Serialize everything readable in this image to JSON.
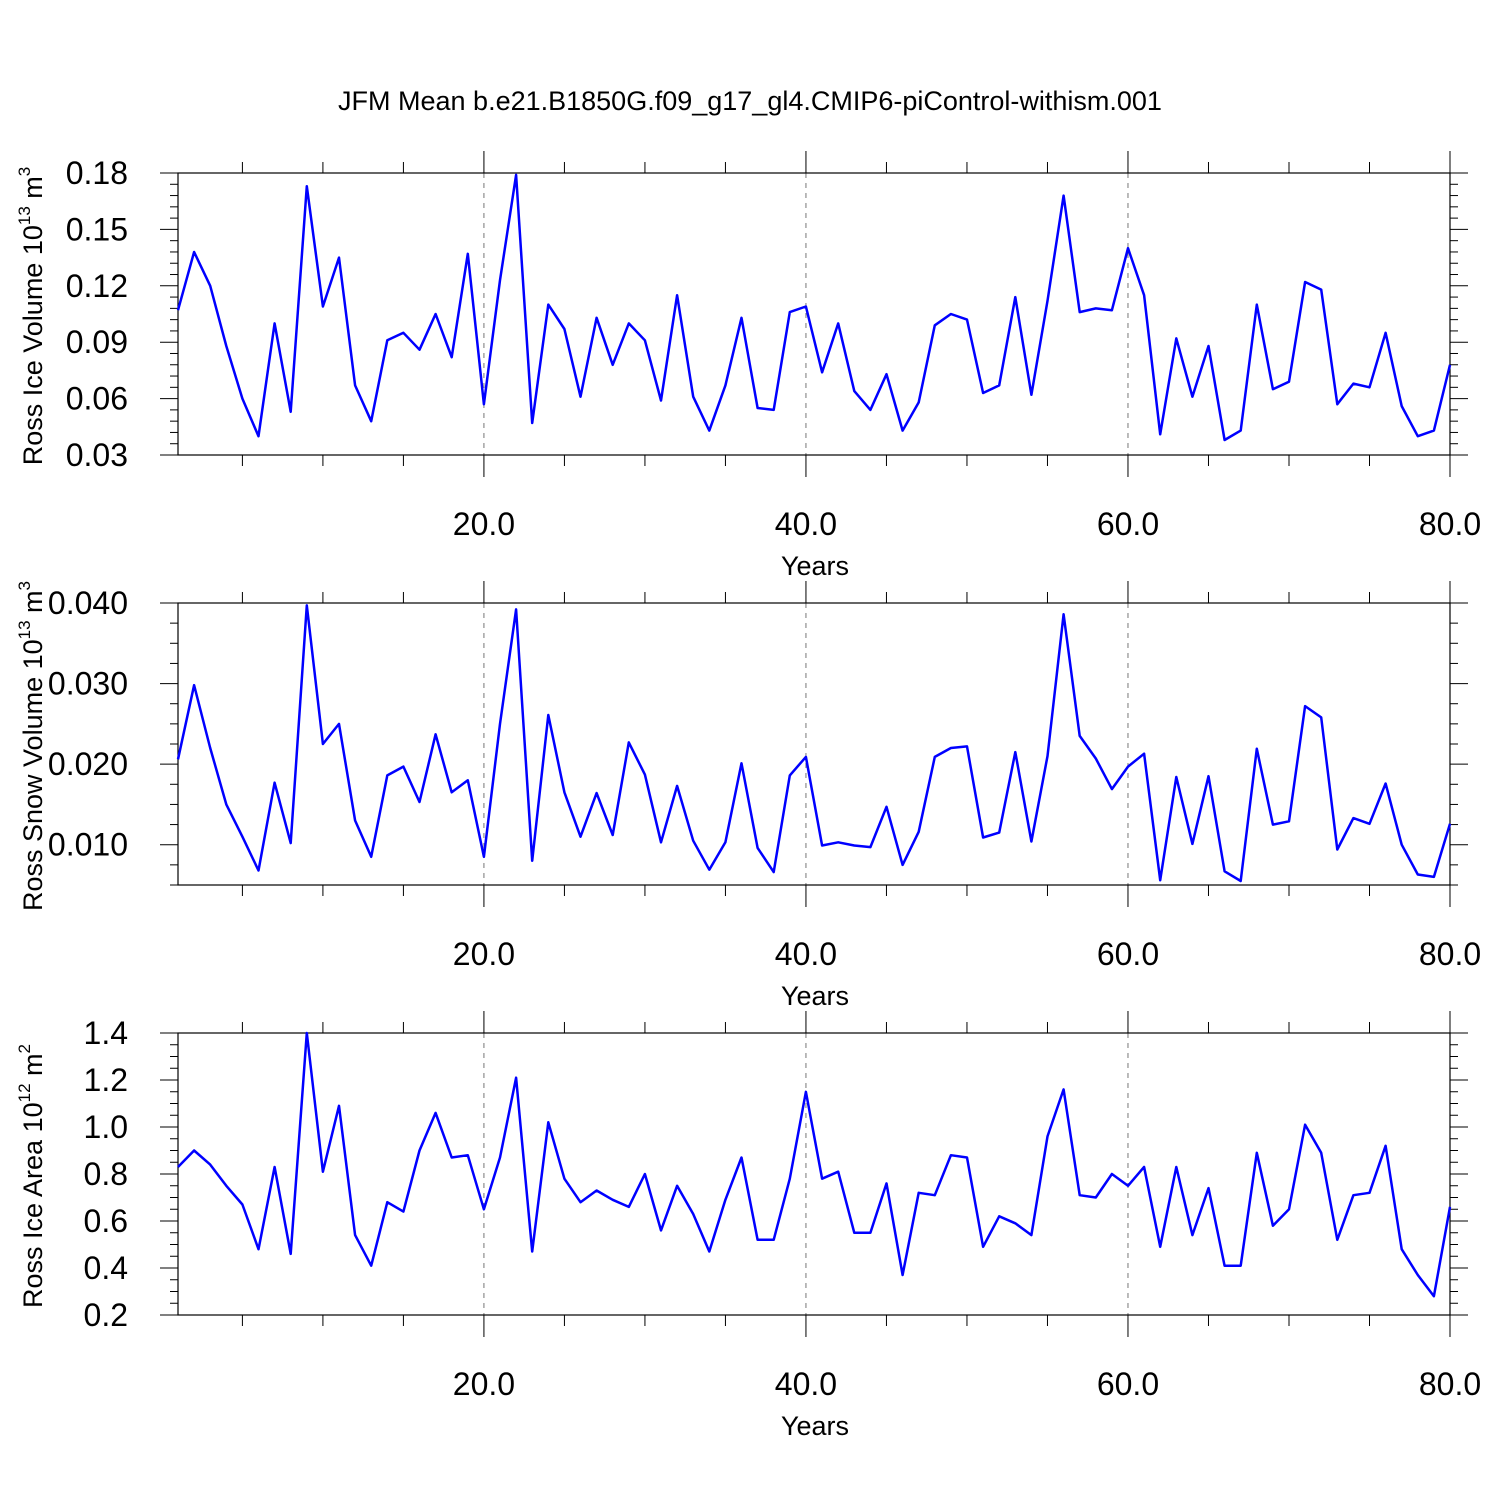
{
  "title": "JFM Mean b.e21.B1850G.f09_g17_gl4.CMIP6-piControl-withism.001",
  "chart_data": [
    {
      "type": "line",
      "ylabel": "Ross Ice Volume 10",
      "ylabel_sup": "13",
      "ylabel_unit": "m",
      "ylabel_unit_sup": "3",
      "xlabel": "Years",
      "xlim": [
        1,
        80
      ],
      "ylim": [
        0.03,
        0.18
      ],
      "xticks": [
        20,
        40,
        60,
        80
      ],
      "xtick_labels": [
        "20.0",
        "40.0",
        "60.0",
        "80.0"
      ],
      "yticks": [
        0.03,
        0.06,
        0.09,
        0.12,
        0.15,
        0.18
      ],
      "ytick_labels": [
        "0.03",
        "0.06",
        "0.09",
        "0.12",
        "0.15",
        "0.18"
      ],
      "x_start": 1,
      "color": "#0000ff",
      "grid": "dashed vertical at 20, 40, 60",
      "values": [
        0.107,
        0.138,
        0.12,
        0.088,
        0.06,
        0.04,
        0.1,
        0.053,
        0.173,
        0.109,
        0.135,
        0.067,
        0.048,
        0.091,
        0.095,
        0.086,
        0.105,
        0.082,
        0.137,
        0.057,
        0.123,
        0.179,
        0.047,
        0.11,
        0.097,
        0.061,
        0.103,
        0.078,
        0.1,
        0.091,
        0.059,
        0.115,
        0.061,
        0.043,
        0.067,
        0.103,
        0.055,
        0.054,
        0.106,
        0.109,
        0.074,
        0.1,
        0.064,
        0.054,
        0.073,
        0.043,
        0.058,
        0.099,
        0.105,
        0.102,
        0.063,
        0.067,
        0.114,
        0.062,
        0.112,
        0.168,
        0.106,
        0.108,
        0.107,
        0.14,
        0.115,
        0.041,
        0.092,
        0.061,
        0.088,
        0.038,
        0.043,
        0.11,
        0.065,
        0.069,
        0.122,
        0.118,
        0.057,
        0.068,
        0.066,
        0.095,
        0.056,
        0.04,
        0.043,
        0.078
      ]
    },
    {
      "type": "line",
      "ylabel": "Ross Snow Volume 10",
      "ylabel_sup": "13",
      "ylabel_unit": "m",
      "ylabel_unit_sup": "3",
      "xlabel": "Years",
      "xlim": [
        1,
        80
      ],
      "ylim": [
        0.005,
        0.04
      ],
      "xticks": [
        20,
        40,
        60,
        80
      ],
      "xtick_labels": [
        "20.0",
        "40.0",
        "60.0",
        "80.0"
      ],
      "yticks": [
        0.01,
        0.02,
        0.03,
        0.04
      ],
      "ytick_labels": [
        "0.010",
        "0.020",
        "0.030",
        "0.040"
      ],
      "x_start": 1,
      "color": "#0000ff",
      "grid": "dashed vertical at 20, 40, 60",
      "values": [
        0.0206,
        0.0298,
        0.022,
        0.015,
        0.011,
        0.0068,
        0.0177,
        0.0102,
        0.0397,
        0.0225,
        0.025,
        0.013,
        0.0085,
        0.0186,
        0.0197,
        0.0153,
        0.0237,
        0.0165,
        0.018,
        0.0085,
        0.025,
        0.0392,
        0.008,
        0.0261,
        0.0165,
        0.011,
        0.0164,
        0.0112,
        0.0227,
        0.0187,
        0.0103,
        0.0173,
        0.0105,
        0.0069,
        0.0103,
        0.0201,
        0.0096,
        0.0066,
        0.0186,
        0.0209,
        0.0099,
        0.0103,
        0.0099,
        0.0097,
        0.0147,
        0.0075,
        0.0116,
        0.0209,
        0.022,
        0.0222,
        0.0109,
        0.0115,
        0.0215,
        0.0104,
        0.021,
        0.0386,
        0.0235,
        0.0207,
        0.0169,
        0.0197,
        0.0213,
        0.0056,
        0.0184,
        0.0101,
        0.0185,
        0.0067,
        0.0055,
        0.0219,
        0.0125,
        0.0129,
        0.0272,
        0.0258,
        0.0094,
        0.0133,
        0.0126,
        0.0176,
        0.01,
        0.0063,
        0.006,
        0.0126
      ]
    },
    {
      "type": "line",
      "ylabel": "Ross Ice Area 10",
      "ylabel_sup": "12",
      "ylabel_unit": "m",
      "ylabel_unit_sup": "2",
      "xlabel": "Years",
      "xlim": [
        1,
        80
      ],
      "ylim": [
        0.2,
        1.4
      ],
      "xticks": [
        20,
        40,
        60,
        80
      ],
      "xtick_labels": [
        "20.0",
        "40.0",
        "60.0",
        "80.0"
      ],
      "yticks": [
        0.2,
        0.4,
        0.6,
        0.8,
        1.0,
        1.2,
        1.4
      ],
      "ytick_labels": [
        "0.2",
        "0.4",
        "0.6",
        "0.8",
        "1.0",
        "1.2",
        "1.4"
      ],
      "x_start": 1,
      "color": "#0000ff",
      "grid": "dashed vertical at 20, 40, 60",
      "values": [
        0.83,
        0.9,
        0.84,
        0.75,
        0.67,
        0.48,
        0.83,
        0.46,
        1.4,
        0.81,
        1.09,
        0.54,
        0.41,
        0.68,
        0.64,
        0.9,
        1.06,
        0.87,
        0.88,
        0.65,
        0.87,
        1.21,
        0.47,
        1.02,
        0.78,
        0.68,
        0.73,
        0.69,
        0.66,
        0.8,
        0.56,
        0.75,
        0.63,
        0.47,
        0.69,
        0.87,
        0.52,
        0.52,
        0.78,
        1.15,
        0.78,
        0.81,
        0.55,
        0.55,
        0.76,
        0.37,
        0.72,
        0.71,
        0.88,
        0.87,
        0.49,
        0.62,
        0.59,
        0.54,
        0.96,
        1.16,
        0.71,
        0.7,
        0.8,
        0.75,
        0.83,
        0.49,
        0.83,
        0.54,
        0.74,
        0.41,
        0.41,
        0.89,
        0.58,
        0.65,
        1.01,
        0.89,
        0.52,
        0.71,
        0.72,
        0.92,
        0.48,
        0.37,
        0.28,
        0.66
      ]
    }
  ]
}
